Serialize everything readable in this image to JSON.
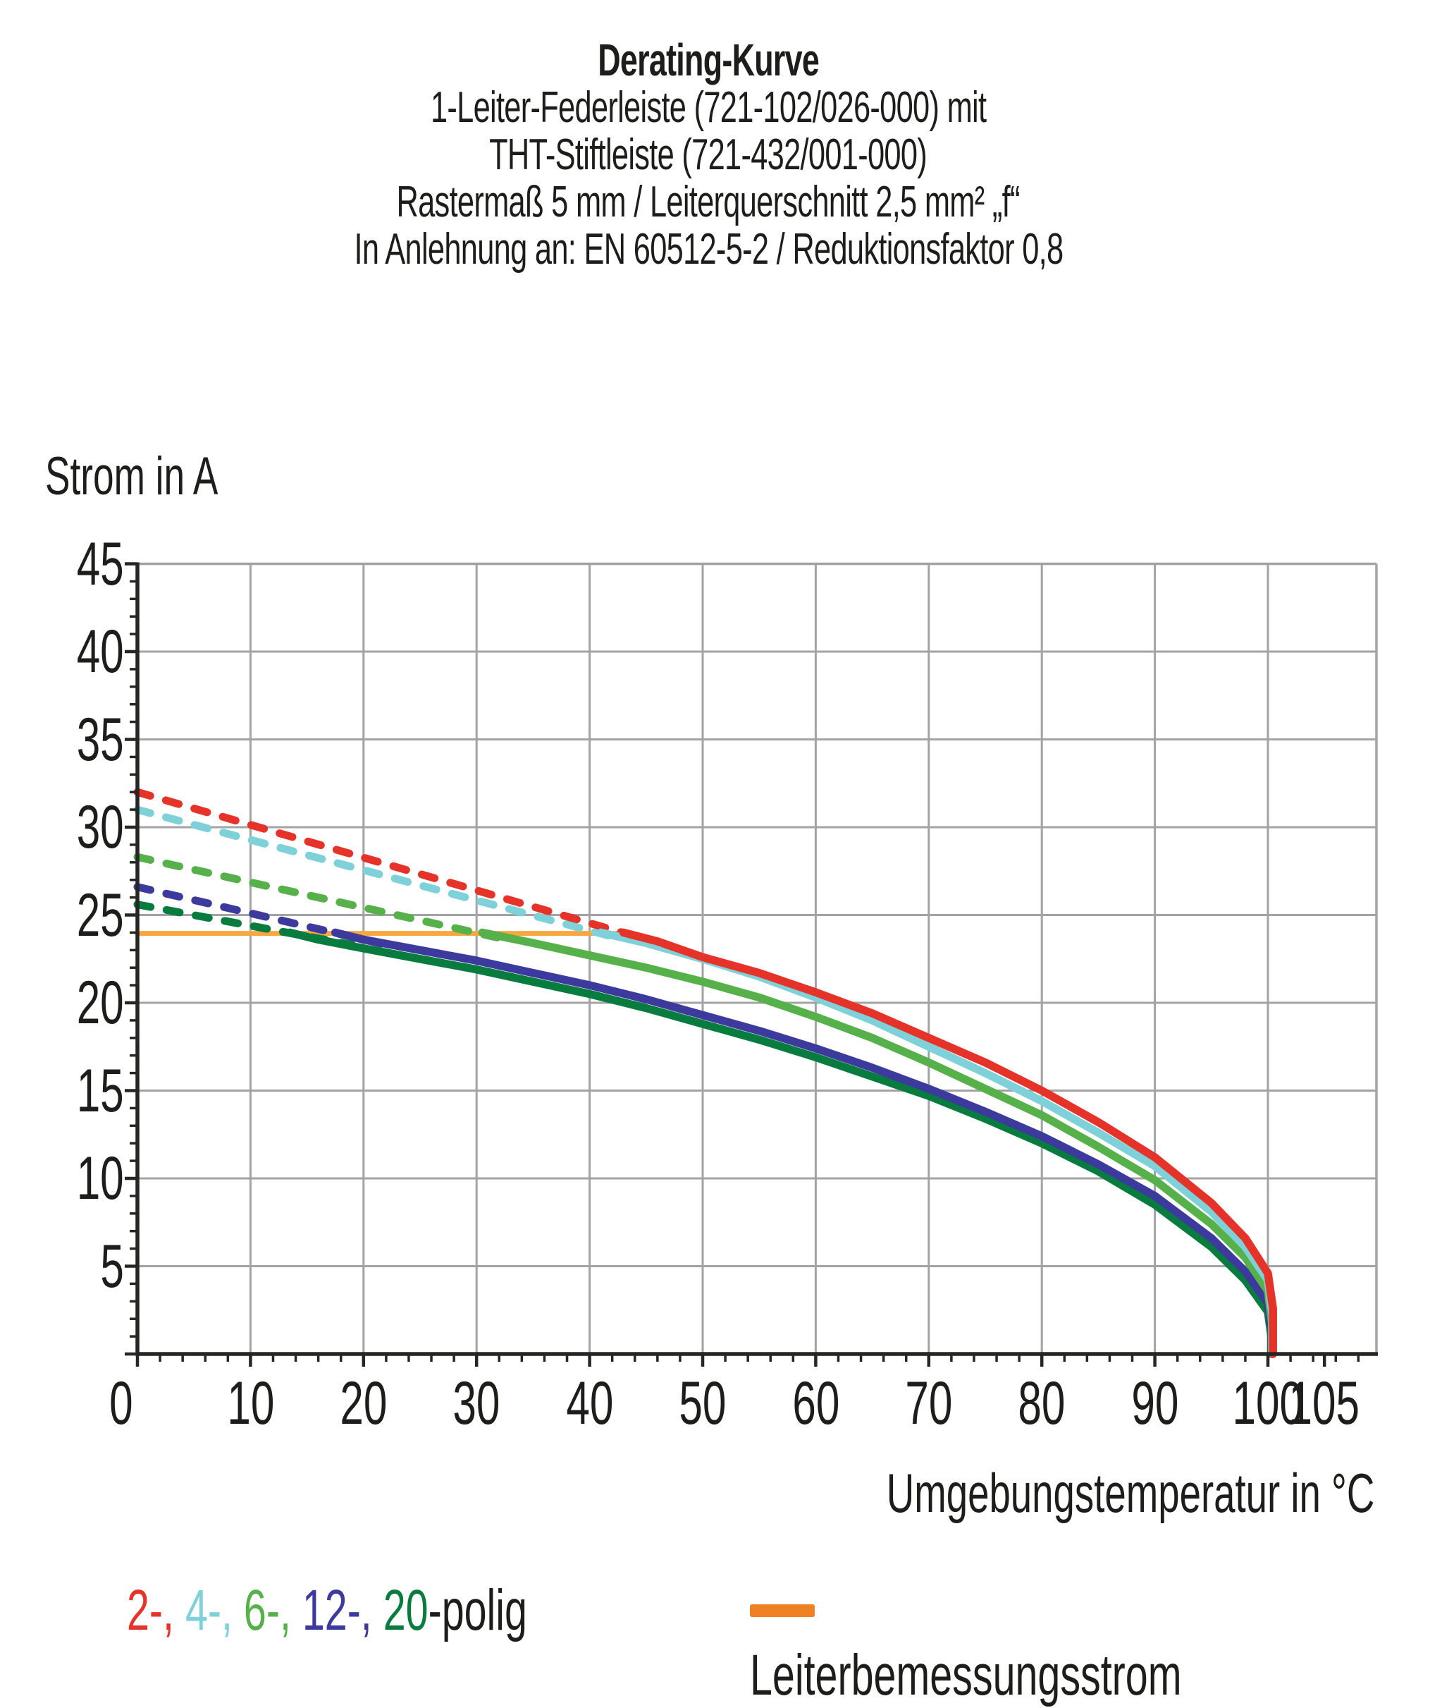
{
  "title": {
    "lines": [
      {
        "text": "Derating-Kurve",
        "bold": true
      },
      {
        "text": "1-Leiter-Federleiste (721-102/026-000) mit",
        "bold": false
      },
      {
        "text": "THT-Stiftleiste (721-432/001-000)",
        "bold": false
      },
      {
        "text": "Rastermaß 5 mm / Leiterquerschnitt 2,5 mm² „f“",
        "bold": false
      },
      {
        "text": "In Anlehnung an: EN 60512-5-2 / Reduktionsfaktor 0,8",
        "bold": false
      }
    ]
  },
  "y_axis_title": "Strom in A",
  "x_axis_title": "Umgebungstemperatur in °C",
  "legend": {
    "poles": {
      "entries": [
        {
          "text": "2-,",
          "color": "#e6332a"
        },
        {
          "text": "4-,",
          "color": "#7fd1d9"
        },
        {
          "text": "6-,",
          "color": "#57b14a"
        },
        {
          "text": "12-,",
          "color": "#3d3a9d"
        },
        {
          "text": "20",
          "color": "#087c3f"
        }
      ],
      "suffix": "-polig",
      "suffix_color": "#1d1d1b"
    },
    "rated": {
      "label": "Leiterbemessungsstrom",
      "swatch_color": "#ef8023"
    }
  },
  "colors": {
    "grid": "#a3a3a6",
    "axis": "#262624",
    "text": "#1d1d1b",
    "rated_line": "#f9a840"
  },
  "chart_data": {
    "type": "line",
    "title": "Derating-Kurve",
    "xlabel": "Umgebungstemperatur in °C",
    "ylabel": "Strom in A",
    "x_range": [
      0,
      109.6
    ],
    "y_range": [
      0,
      45
    ],
    "x_ticks": [
      0,
      10,
      20,
      30,
      40,
      50,
      60,
      70,
      80,
      90,
      100,
      105
    ],
    "y_ticks": [
      0,
      5,
      10,
      15,
      20,
      25,
      30,
      35,
      40,
      45
    ],
    "x_minor_step": 2,
    "y_minor_step": 1,
    "grid": "major-on",
    "legend_position": "bottom",
    "rated_current_A": 24,
    "rated_line": {
      "name": "Leiterbemessungsstrom",
      "color": "#f9a840",
      "points": [
        [
          0,
          23.95
        ],
        [
          43.5,
          23.95
        ]
      ]
    },
    "series": [
      {
        "name": "2-polig",
        "color": "#e6332a",
        "dashed_points": [
          [
            0,
            32.0
          ],
          [
            44.5,
            23.7
          ]
        ],
        "solid_points": [
          [
            43,
            24
          ],
          [
            46,
            23.5
          ],
          [
            50,
            22.6
          ],
          [
            55,
            21.7
          ],
          [
            60,
            20.6
          ],
          [
            65,
            19.4
          ],
          [
            70,
            18.0
          ],
          [
            75,
            16.6
          ],
          [
            80,
            15.0
          ],
          [
            85,
            13.2
          ],
          [
            90,
            11.2
          ],
          [
            95,
            8.6
          ],
          [
            98,
            6.6
          ],
          [
            100,
            4.6
          ],
          [
            100.45,
            2.6
          ],
          [
            100.45,
            0
          ]
        ]
      },
      {
        "name": "4-polig",
        "color": "#7fd1d9",
        "dashed_points": [
          [
            0,
            31.0
          ],
          [
            43,
            23.6
          ]
        ],
        "solid_points": [
          [
            41,
            24
          ],
          [
            45,
            23.4
          ],
          [
            50,
            22.5
          ],
          [
            55,
            21.5
          ],
          [
            60,
            20.3
          ],
          [
            65,
            19.0
          ],
          [
            70,
            17.5
          ],
          [
            75,
            16.0
          ],
          [
            80,
            14.4
          ],
          [
            85,
            12.6
          ],
          [
            90,
            10.7
          ],
          [
            95,
            8.1
          ],
          [
            98,
            6.1
          ],
          [
            100,
            4.2
          ],
          [
            100.4,
            2.2
          ],
          [
            100.4,
            0
          ]
        ]
      },
      {
        "name": "6-polig",
        "color": "#57b14a",
        "dashed_points": [
          [
            0,
            28.3
          ],
          [
            33,
            23.55
          ]
        ],
        "solid_points": [
          [
            30.5,
            24
          ],
          [
            35,
            23.4
          ],
          [
            40,
            22.7
          ],
          [
            45,
            22.0
          ],
          [
            50,
            21.2
          ],
          [
            55,
            20.3
          ],
          [
            60,
            19.2
          ],
          [
            65,
            18.0
          ],
          [
            70,
            16.6
          ],
          [
            75,
            15.1
          ],
          [
            80,
            13.6
          ],
          [
            85,
            11.8
          ],
          [
            90,
            9.9
          ],
          [
            95,
            7.4
          ],
          [
            98,
            5.5
          ],
          [
            100,
            3.6
          ],
          [
            100.35,
            1.8
          ],
          [
            100.35,
            0
          ]
        ]
      },
      {
        "name": "12-polig",
        "color": "#3d3a9d",
        "dashed_points": [
          [
            0,
            26.6
          ],
          [
            22,
            23.3
          ]
        ],
        "solid_points": [
          [
            17.5,
            24
          ],
          [
            20,
            23.6
          ],
          [
            25,
            23.0
          ],
          [
            30,
            22.4
          ],
          [
            35,
            21.7
          ],
          [
            40,
            21.0
          ],
          [
            45,
            20.2
          ],
          [
            50,
            19.3
          ],
          [
            55,
            18.4
          ],
          [
            60,
            17.4
          ],
          [
            65,
            16.3
          ],
          [
            70,
            15.1
          ],
          [
            75,
            13.8
          ],
          [
            80,
            12.4
          ],
          [
            85,
            10.8
          ],
          [
            90,
            9.0
          ],
          [
            95,
            6.6
          ],
          [
            98,
            4.7
          ],
          [
            100,
            2.9
          ],
          [
            100.3,
            1.4
          ],
          [
            100.3,
            0
          ]
        ]
      },
      {
        "name": "20-polig",
        "color": "#087c3f",
        "dashed_points": [
          [
            0,
            25.6
          ],
          [
            19,
            23.3
          ]
        ],
        "solid_points": [
          [
            13.5,
            24
          ],
          [
            16,
            23.6
          ],
          [
            20,
            23.1
          ],
          [
            25,
            22.5
          ],
          [
            30,
            21.9
          ],
          [
            35,
            21.2
          ],
          [
            40,
            20.5
          ],
          [
            45,
            19.7
          ],
          [
            50,
            18.8
          ],
          [
            55,
            17.9
          ],
          [
            60,
            16.9
          ],
          [
            65,
            15.8
          ],
          [
            70,
            14.7
          ],
          [
            75,
            13.4
          ],
          [
            80,
            12.0
          ],
          [
            85,
            10.4
          ],
          [
            90,
            8.5
          ],
          [
            95,
            6.1
          ],
          [
            98,
            4.2
          ],
          [
            100,
            2.4
          ],
          [
            100.3,
            1.0
          ],
          [
            100.3,
            0
          ]
        ]
      }
    ]
  }
}
